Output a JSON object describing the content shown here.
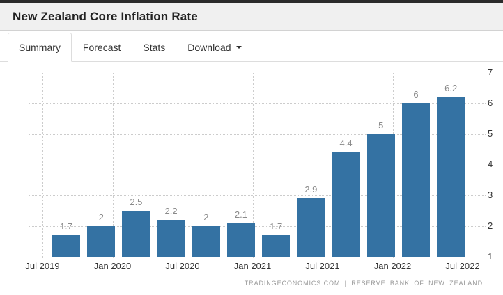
{
  "header": {
    "title": "New Zealand Core Inflation Rate"
  },
  "tabs": {
    "items": [
      {
        "label": "Summary",
        "active": true
      },
      {
        "label": "Forecast",
        "active": false
      },
      {
        "label": "Stats",
        "active": false
      },
      {
        "label": "Download",
        "active": false,
        "has_caret": true
      }
    ]
  },
  "chart_data": {
    "type": "bar",
    "title": "New Zealand Core Inflation Rate",
    "values": [
      1.7,
      2,
      2.5,
      2.2,
      2,
      2.1,
      1.7,
      2.9,
      4.4,
      5,
      6,
      6.2
    ],
    "value_labels": [
      "1.7",
      "2",
      "2.5",
      "2.2",
      "2",
      "2.1",
      "1.7",
      "2.9",
      "4.4",
      "5",
      "6",
      "6.2"
    ],
    "x_tick_labels": [
      "Jul 2019",
      "Jan 2020",
      "Jul 2020",
      "Jan 2021",
      "Jul 2021",
      "Jan 2022",
      "Jul 2022"
    ],
    "y_ticks": [
      1,
      2,
      3,
      4,
      5,
      6,
      7
    ],
    "ylim": [
      1,
      7
    ],
    "bar_base": 1,
    "bar_color": "#3472a3",
    "grid": "dotted",
    "y_axis_position": "right",
    "legend": "none",
    "attribution": "TRADINGECONOMICS.COM | RESERVE BANK OF NEW ZEALAND"
  }
}
